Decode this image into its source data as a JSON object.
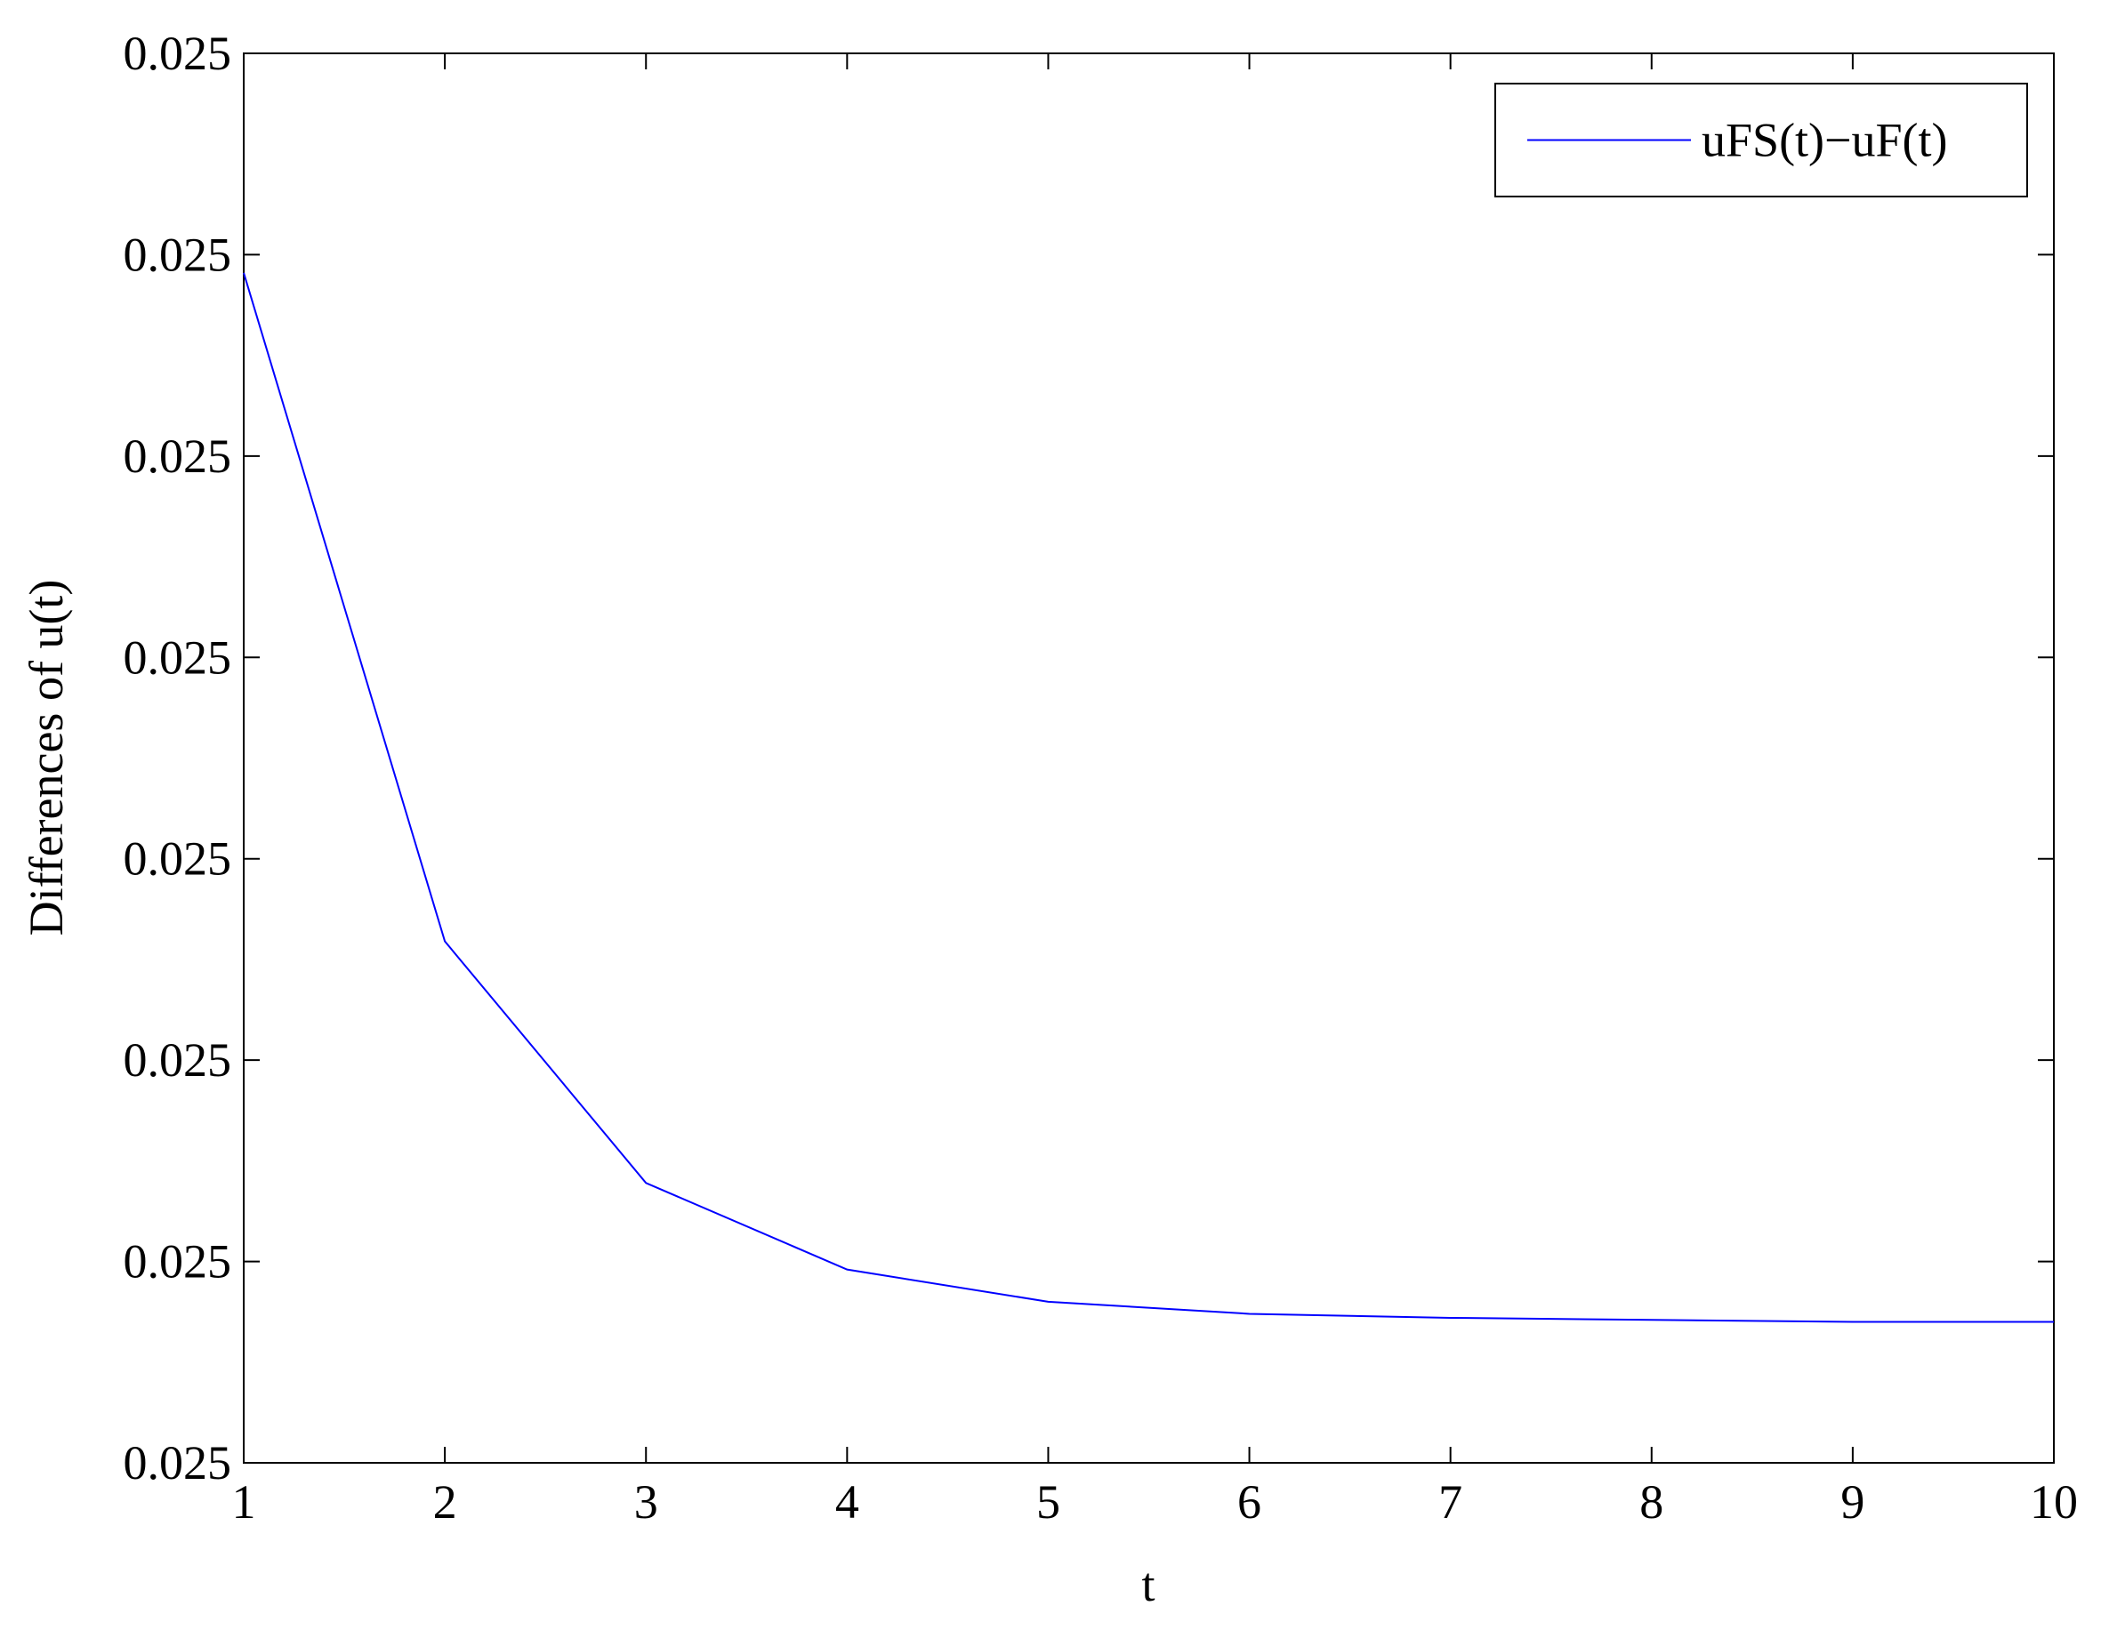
{
  "chart_data": {
    "type": "line",
    "xlabel": "t",
    "ylabel": "Differences of u(t)",
    "x": [
      1,
      2,
      3,
      4,
      5,
      6,
      7,
      8,
      9,
      10
    ],
    "series": [
      {
        "name": "uFS(t)−uF(t)",
        "color": "#0000ff",
        "values": [
          0.0250591,
          0.0250259,
          0.0250139,
          0.0250096,
          0.025008,
          0.0250074,
          0.0250072,
          0.0250071,
          0.025007,
          0.025007
        ]
      }
    ],
    "xlim": [
      1,
      10
    ],
    "xticks": [
      1,
      2,
      3,
      4,
      5,
      6,
      7,
      8,
      9,
      10
    ],
    "ylim": [
      0.025,
      0.02507
    ],
    "yticks": [
      {
        "value": 0.025,
        "label": "0.025"
      },
      {
        "value": 0.02501,
        "label": "0.025"
      },
      {
        "value": 0.02502,
        "label": "0.025"
      },
      {
        "value": 0.02503,
        "label": "0.025"
      },
      {
        "value": 0.02504,
        "label": "0.025"
      },
      {
        "value": 0.02505,
        "label": "0.025"
      },
      {
        "value": 0.02506,
        "label": "0.025"
      },
      {
        "value": 0.02507,
        "label": "0.025"
      }
    ],
    "grid": false,
    "legend": "upper right"
  }
}
